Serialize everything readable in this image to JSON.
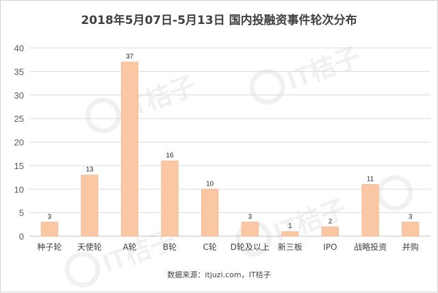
{
  "chart_data": {
    "type": "bar",
    "title": "2018年5月07日-5月13日  国内投融资事件轮次分布",
    "categories": [
      "种子轮",
      "天使轮",
      "A轮",
      "B轮",
      "C轮",
      "D轮及以上",
      "新三板",
      "IPO",
      "战略投资",
      "并购"
    ],
    "values": [
      3,
      13,
      37,
      16,
      10,
      3,
      1,
      2,
      11,
      3
    ],
    "xlabel": "",
    "ylabel": "",
    "ylim": [
      0,
      40
    ],
    "yticks": [
      0,
      5,
      10,
      15,
      20,
      25,
      30,
      35,
      40
    ],
    "grid": true,
    "bar_color": "#f9c7a3",
    "bar_edge_color": "#f4b183",
    "source": "数据来源：itjuzi.com，IT桔子"
  },
  "watermark": {
    "text": "IT桔子",
    "icon": "orange-slice-icon"
  }
}
